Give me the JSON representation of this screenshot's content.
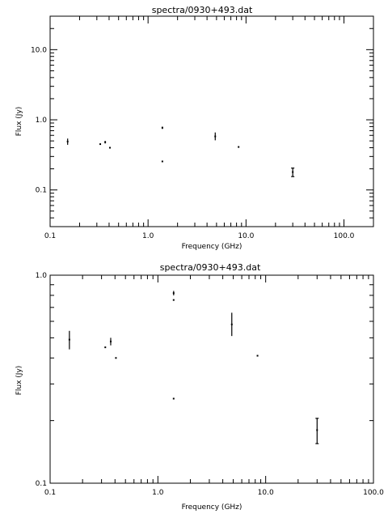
{
  "chart_data": [
    {
      "type": "scatter",
      "title": "spectra/0930+493.dat",
      "xlabel": "Frequency (GHz)",
      "ylabel": "Flux (Jy)",
      "xscale": "log",
      "yscale": "log",
      "xlim": [
        0.1,
        200
      ],
      "ylim": [
        0.03,
        30
      ],
      "xticks": [
        {
          "value": 0.1,
          "label": "0.1"
        },
        {
          "value": 1,
          "label": "1.0"
        },
        {
          "value": 10,
          "label": "10.0"
        },
        {
          "value": 100,
          "label": "100.0"
        }
      ],
      "yticks": [
        {
          "value": 0.1,
          "label": "0.1"
        },
        {
          "value": 1,
          "label": "1.0"
        },
        {
          "value": 10,
          "label": "10.0"
        }
      ],
      "grid": false,
      "points": [
        {
          "x": 0.151,
          "y": 0.49,
          "ylo": 0.44,
          "yhi": 0.54
        },
        {
          "x": 0.325,
          "y": 0.45,
          "ylo": 0.45,
          "yhi": 0.45
        },
        {
          "x": 0.365,
          "y": 0.48,
          "ylo": 0.46,
          "yhi": 0.5
        },
        {
          "x": 0.408,
          "y": 0.4,
          "ylo": 0.4,
          "yhi": 0.4
        },
        {
          "x": 1.4,
          "y": 0.77,
          "ylo": 0.74,
          "yhi": 0.8
        },
        {
          "x": 1.4,
          "y": 0.255,
          "ylo": 0.255,
          "yhi": 0.255
        },
        {
          "x": 4.85,
          "y": 0.58,
          "ylo": 0.51,
          "yhi": 0.66
        },
        {
          "x": 8.4,
          "y": 0.41,
          "ylo": 0.41,
          "yhi": 0.41
        },
        {
          "x": 30,
          "y": 0.18,
          "ylo": 0.155,
          "yhi": 0.205
        }
      ]
    },
    {
      "type": "scatter",
      "title": "spectra/0930+493.dat",
      "xlabel": "Frequency (GHz)",
      "ylabel": "Flux (Jy)",
      "xscale": "log",
      "yscale": "log",
      "xlim": [
        0.1,
        100
      ],
      "ylim": [
        0.1,
        1.0
      ],
      "xticks": [
        {
          "value": 0.1,
          "label": "0.1"
        },
        {
          "value": 1,
          "label": "1.0"
        },
        {
          "value": 10,
          "label": "10.0"
        },
        {
          "value": 100,
          "label": "100.0"
        }
      ],
      "yticks": [
        {
          "value": 0.1,
          "label": "0.1"
        },
        {
          "value": 1,
          "label": "1.0"
        }
      ],
      "grid": false,
      "points": [
        {
          "x": 0.151,
          "y": 0.49,
          "ylo": 0.44,
          "yhi": 0.54
        },
        {
          "x": 0.325,
          "y": 0.45,
          "ylo": 0.45,
          "yhi": 0.45
        },
        {
          "x": 0.365,
          "y": 0.48,
          "ylo": 0.46,
          "yhi": 0.5
        },
        {
          "x": 0.408,
          "y": 0.4,
          "ylo": 0.4,
          "yhi": 0.4
        },
        {
          "x": 1.4,
          "y": 0.82,
          "ylo": 0.8,
          "yhi": 0.84
        },
        {
          "x": 1.4,
          "y": 0.76,
          "ylo": 0.76,
          "yhi": 0.76
        },
        {
          "x": 1.4,
          "y": 0.255,
          "ylo": 0.255,
          "yhi": 0.255
        },
        {
          "x": 4.85,
          "y": 0.58,
          "ylo": 0.51,
          "yhi": 0.66
        },
        {
          "x": 8.4,
          "y": 0.41,
          "ylo": 0.41,
          "yhi": 0.41
        },
        {
          "x": 30,
          "y": 0.18,
          "ylo": 0.155,
          "yhi": 0.205
        }
      ]
    }
  ]
}
